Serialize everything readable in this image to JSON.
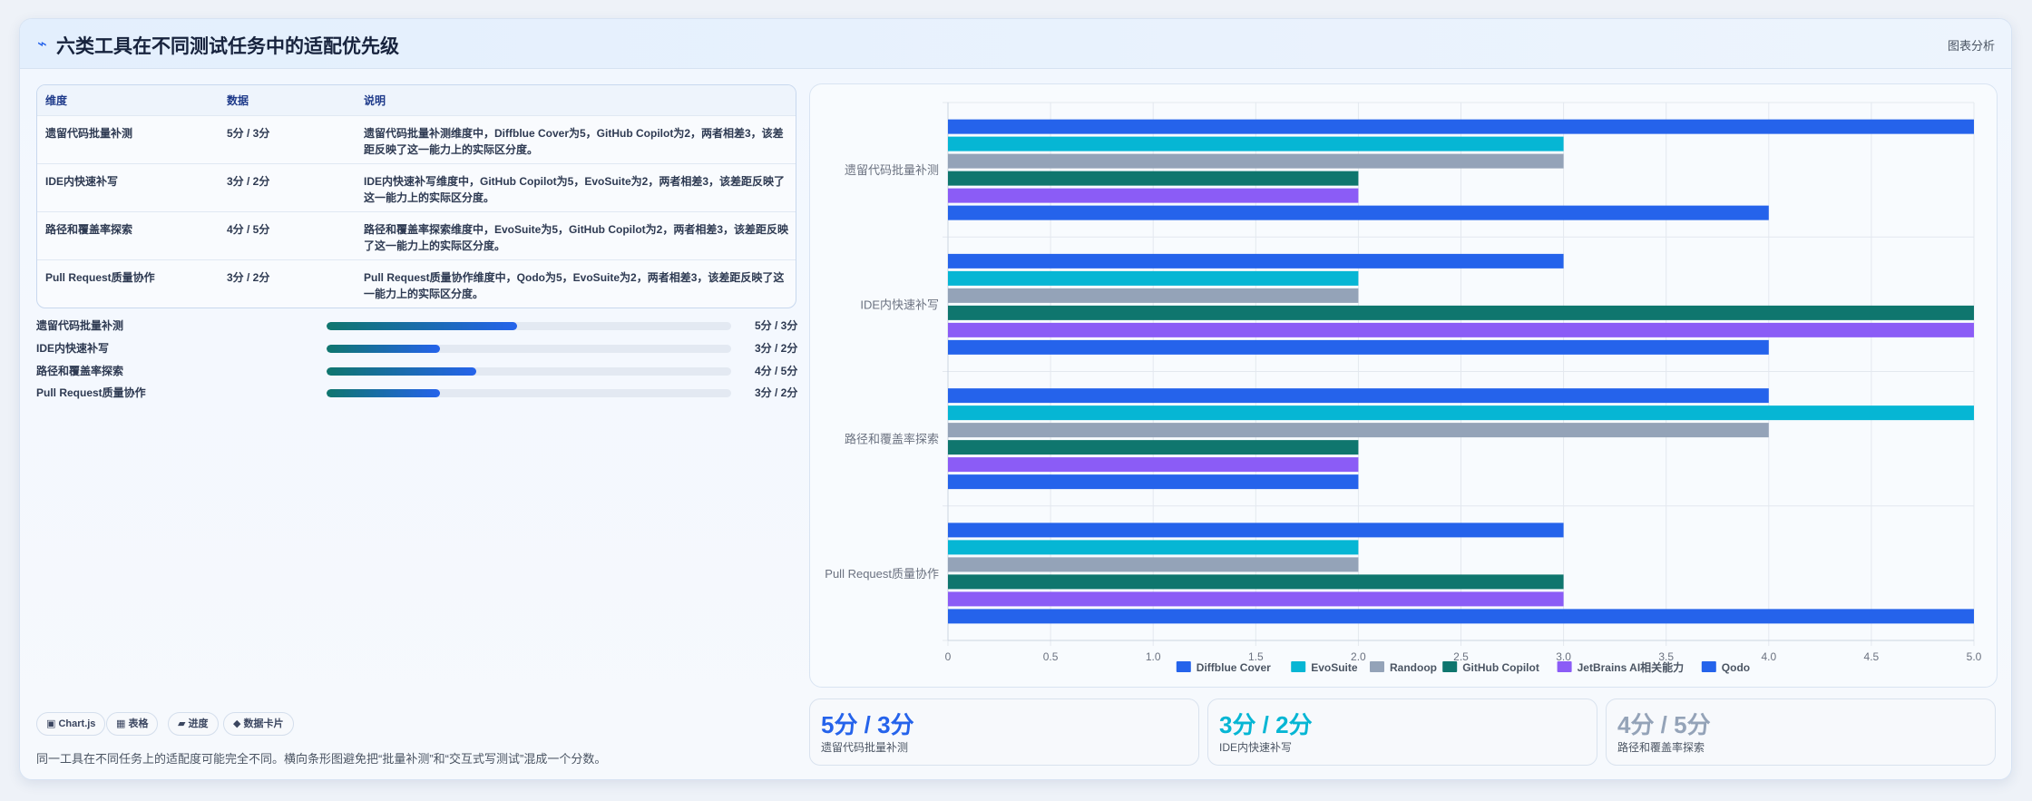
{
  "header": {
    "icon": "pulse-icon",
    "title": "六类工具在不同测试任务中的适配优先级",
    "tag": "图表分析"
  },
  "table": {
    "headers": [
      "维度",
      "数据",
      "说明"
    ],
    "rows": [
      {
        "dim": "遗留代码批量补测",
        "data": "5分 / 3分",
        "desc": "遗留代码批量补测维度中，Diffblue Cover为5，GitHub Copilot为2，两者相差3，该差距反映了这一能力上的实际区分度。"
      },
      {
        "dim": "IDE内快速补写",
        "data": "3分 / 2分",
        "desc": "IDE内快速补写维度中，GitHub Copilot为5，EvoSuite为2，两者相差3，该差距反映了这一能力上的实际区分度。"
      },
      {
        "dim": "路径和覆盖率探索",
        "data": "4分 / 5分",
        "desc": "路径和覆盖率探索维度中，EvoSuite为5，GitHub Copilot为2，两者相差3，该差距反映了这一能力上的实际区分度。"
      },
      {
        "dim": "Pull Request质量协作",
        "data": "3分 / 2分",
        "desc": "Pull Request质量协作维度中，Qodo为5，EvoSuite为2，两者相差3，该差距反映了这一能力上的实际区分度。"
      }
    ]
  },
  "progress": [
    {
      "label": "遗留代码批量补测",
      "fraction": 0.47,
      "value": "5分 / 3分"
    },
    {
      "label": "IDE内快速补写",
      "fraction": 0.28,
      "value": "3分 / 2分"
    },
    {
      "label": "路径和覆盖率探索",
      "fraction": 0.37,
      "value": "4分 / 5分"
    },
    {
      "label": "Pull Request质量协作",
      "fraction": 0.28,
      "value": "3分 / 2分"
    }
  ],
  "chips": [
    {
      "icon": "▣",
      "label": "Chart.js"
    },
    {
      "icon": "▦",
      "label": "表格"
    },
    {
      "icon": "▰",
      "label": "进度"
    },
    {
      "icon": "◆",
      "label": "数据卡片"
    }
  ],
  "note": "同一工具在不同任务上的适配度可能完全不同。横向条形图避免把“批量补测”和“交互式写测试”混成一个分数。",
  "stats": [
    {
      "value": "5分 / 3分",
      "label": "遗留代码批量补测",
      "color": "#2563eb"
    },
    {
      "value": "3分 / 2分",
      "label": "IDE内快速补写",
      "color": "#06b6d4"
    },
    {
      "value": "4分 / 5分",
      "label": "路径和覆盖率探索",
      "color": "#94a3b8"
    }
  ],
  "chart_data": {
    "type": "bar",
    "orientation": "horizontal",
    "categories": [
      "遗留代码批量补测",
      "IDE内快速补写",
      "路径和覆盖率探索",
      "Pull Request质量协作"
    ],
    "series": [
      {
        "name": "Diffblue Cover",
        "color": "#2563eb",
        "values": [
          5,
          3,
          4,
          3
        ]
      },
      {
        "name": "EvoSuite",
        "color": "#06b6d4",
        "values": [
          3,
          2,
          5,
          2
        ]
      },
      {
        "name": "Randoop",
        "color": "#94a3b8",
        "values": [
          3,
          2,
          4,
          2
        ]
      },
      {
        "name": "GitHub Copilot",
        "color": "#0f766e",
        "values": [
          2,
          5,
          2,
          3
        ]
      },
      {
        "name": "JetBrains AI相关能力",
        "color": "#8b5cf6",
        "values": [
          2,
          5,
          2,
          3
        ]
      },
      {
        "name": "Qodo",
        "color": "#2563eb",
        "values": [
          4,
          4,
          2,
          5
        ]
      }
    ],
    "xlim": [
      0,
      5
    ],
    "xticks": [
      "0",
      "0.5",
      "1.0",
      "1.5",
      "2.0",
      "2.5",
      "3.0",
      "3.5",
      "4.0",
      "4.5",
      "5.0"
    ],
    "grid": true,
    "legend": "bottom"
  }
}
